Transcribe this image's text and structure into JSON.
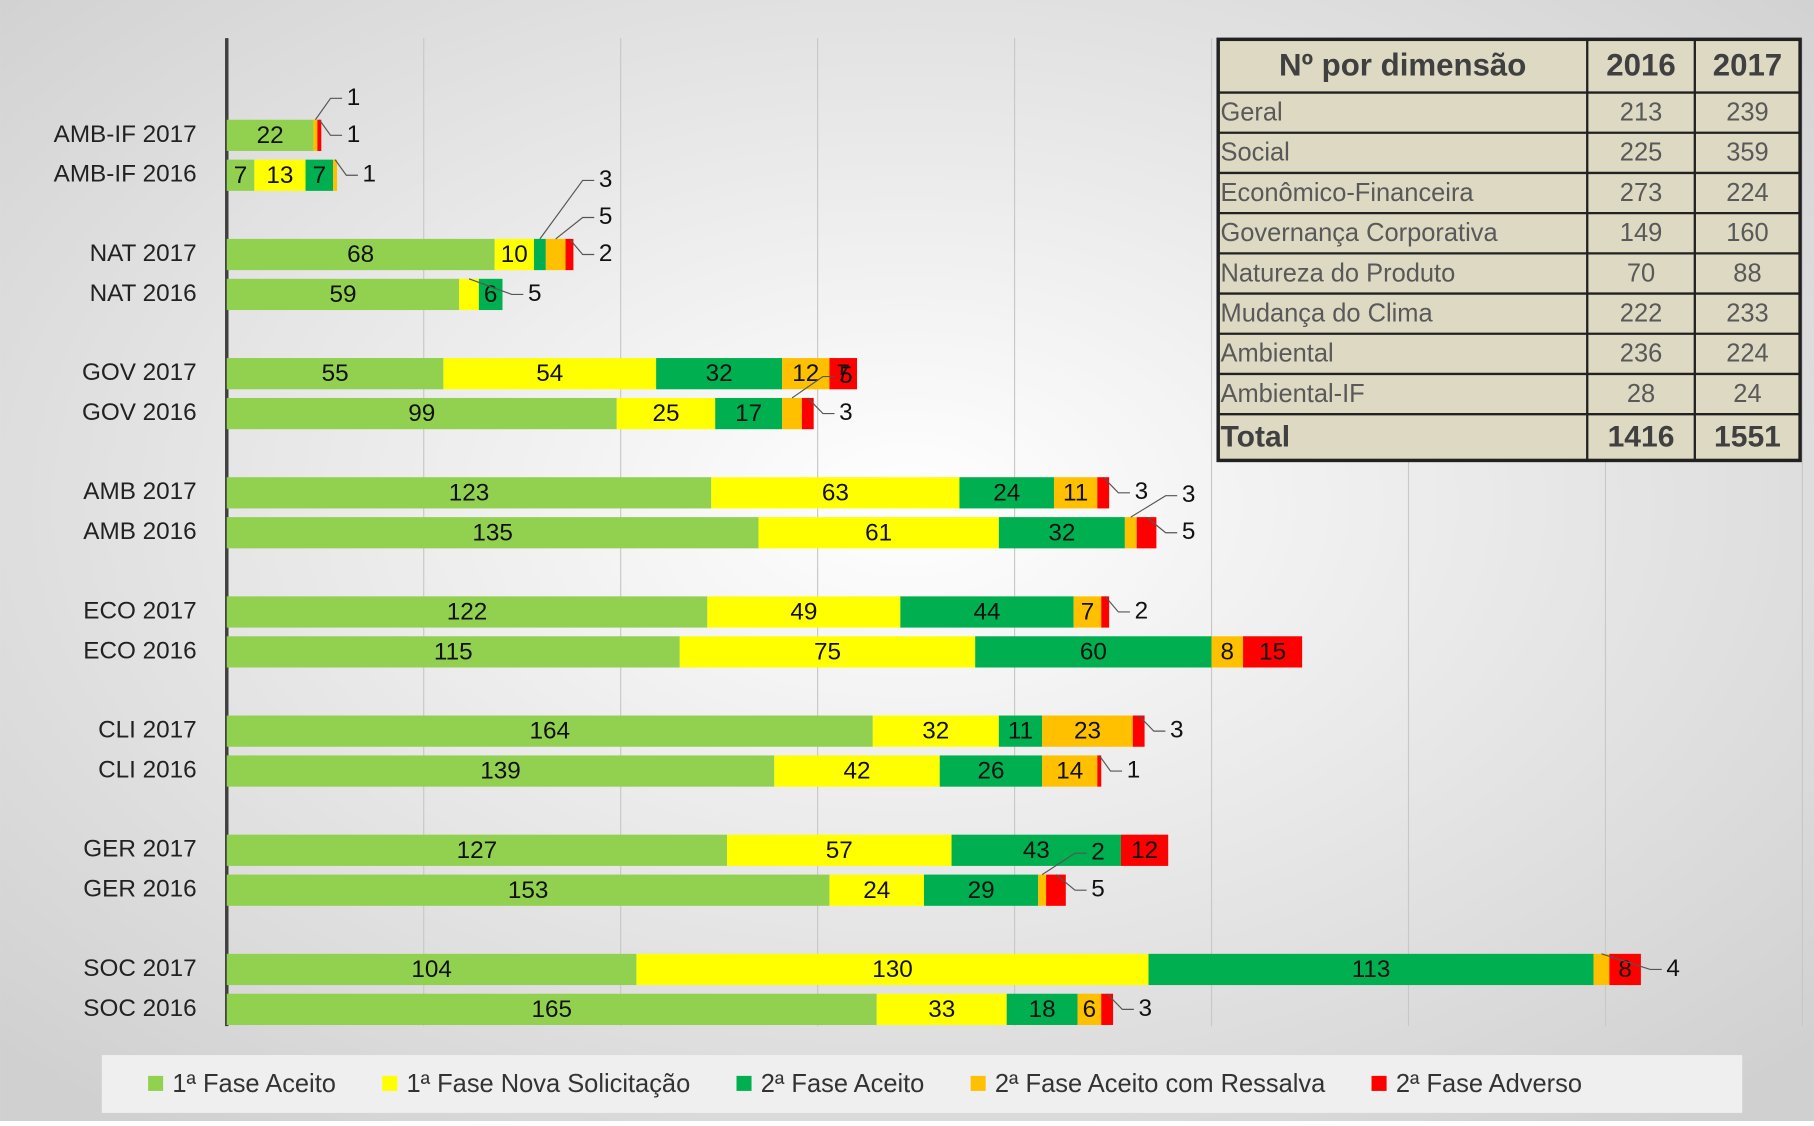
{
  "chart_data": {
    "type": "stacked-barh",
    "categories": [
      "AMB-IF 2017",
      "AMB-IF 2016",
      "NAT 2017",
      "NAT 2016",
      "GOV 2017",
      "GOV 2016",
      "AMB 2017",
      "AMB 2016",
      "ECO 2017",
      "ECO 2016",
      "CLI 2017",
      "CLI 2016",
      "GER 2017",
      "GER 2016",
      "SOC 2017",
      "SOC 2016"
    ],
    "series": [
      {
        "name": "1ª Fase Aceito",
        "color": "#92d050",
        "values": [
          22,
          7,
          68,
          59,
          55,
          99,
          123,
          135,
          122,
          115,
          164,
          139,
          127,
          153,
          104,
          165
        ]
      },
      {
        "name": "1ª Fase Nova Solicitação",
        "color": "#ffff00",
        "values": [
          0,
          13,
          10,
          5,
          54,
          25,
          63,
          61,
          49,
          75,
          32,
          42,
          57,
          24,
          130,
          33
        ]
      },
      {
        "name": "2ª Fase Aceito",
        "color": "#00b050",
        "values": [
          0,
          7,
          3,
          6,
          32,
          17,
          24,
          32,
          44,
          60,
          11,
          26,
          43,
          29,
          113,
          18
        ]
      },
      {
        "name": "2ª Fase Aceito com Ressalva",
        "color": "#ffc000",
        "values": [
          1,
          1,
          5,
          0,
          12,
          5,
          11,
          3,
          7,
          8,
          23,
          14,
          0,
          2,
          4,
          6
        ]
      },
      {
        "name": "2ª Fase Adverso",
        "color": "#ff0000",
        "values": [
          1,
          0,
          2,
          0,
          7,
          3,
          3,
          5,
          2,
          15,
          3,
          1,
          12,
          5,
          8,
          3
        ]
      }
    ],
    "xlim": [
      0,
      400
    ],
    "xticks": [
      0,
      50,
      100,
      150,
      200,
      250,
      300,
      350,
      400
    ],
    "grid": true,
    "legend": "bottom"
  },
  "table": {
    "header": [
      "Nº por dimensão",
      "2016",
      "2017"
    ],
    "rows": [
      [
        "Geral",
        "213",
        "239"
      ],
      [
        "Social",
        "225",
        "359"
      ],
      [
        "Econômico-Financeira",
        "273",
        "224"
      ],
      [
        "Governança Corporativa",
        "149",
        "160"
      ],
      [
        "Natureza do Produto",
        "70",
        "88"
      ],
      [
        "Mudança do Clima",
        "222",
        "233"
      ],
      [
        "Ambiental",
        "236",
        "224"
      ],
      [
        "Ambiental-IF",
        "28",
        "24"
      ]
    ],
    "total": [
      "Total",
      "1416",
      "1551"
    ]
  }
}
